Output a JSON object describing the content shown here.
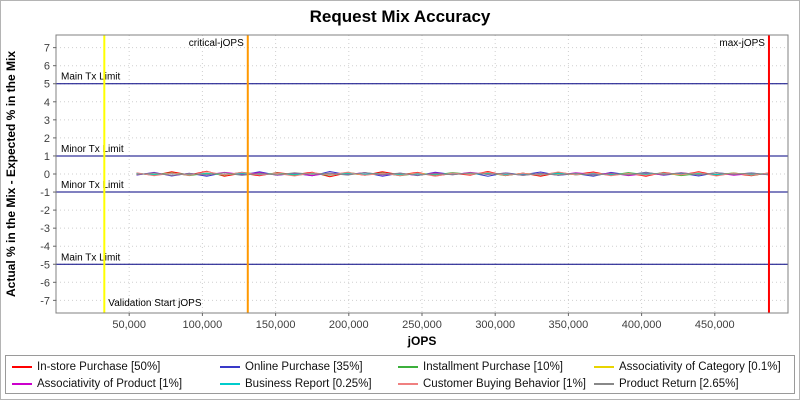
{
  "title": "Request Mix Accuracy",
  "chart_data": {
    "type": "line",
    "title": "Request Mix Accuracy",
    "xlabel": "jOPS",
    "ylabel": "Actual % in the Mix - Expected % in the Mix",
    "xlim": [
      0,
      500000
    ],
    "ylim": [
      -7.7,
      7.7
    ],
    "x_ticks": [
      50000,
      100000,
      150000,
      200000,
      250000,
      300000,
      350000,
      400000,
      450000
    ],
    "y_ticks": [
      -7,
      -6,
      -5,
      -4,
      -3,
      -2,
      -1,
      0,
      1,
      2,
      3,
      4,
      5,
      6,
      7
    ],
    "grid": true,
    "legend_position": "bottom",
    "x": [
      55000,
      67000,
      79000,
      91000,
      103000,
      115000,
      127000,
      139000,
      151000,
      163000,
      175000,
      187000,
      199000,
      211000,
      223000,
      235000,
      247000,
      259000,
      271000,
      283000,
      295000,
      307000,
      319000,
      331000,
      343000,
      355000,
      367000,
      379000,
      391000,
      403000,
      415000,
      427000,
      439000,
      451000,
      463000,
      475000,
      487000
    ],
    "series": [
      {
        "name": "In-store Purchase [50%]",
        "color": "#ff0000",
        "values": [
          0.05,
          -0.08,
          0.12,
          -0.05,
          0.15,
          -0.12,
          0.04,
          -0.1,
          0.08,
          -0.03,
          0.1,
          -0.15,
          0.06,
          -0.07,
          0.13,
          -0.04,
          0.09,
          -0.11,
          0.03,
          -0.06,
          0.14,
          -0.09,
          0.05,
          -0.13,
          0.07,
          -0.02,
          0.11,
          -0.08,
          0.04,
          -0.12,
          0.09,
          -0.05,
          0.13,
          -0.07,
          0.02,
          -0.1,
          0.06
        ]
      },
      {
        "name": "Online Purchase [35%]",
        "color": "#3939c8",
        "values": [
          -0.06,
          0.09,
          -0.11,
          0.04,
          -0.13,
          0.08,
          -0.05,
          0.12,
          -0.07,
          0.03,
          -0.1,
          0.14,
          -0.04,
          0.08,
          -0.12,
          0.05,
          -0.09,
          0.1,
          -0.03,
          0.07,
          -0.13,
          0.06,
          -0.04,
          0.11,
          -0.08,
          0.02,
          -0.12,
          0.09,
          -0.05,
          0.1,
          -0.07,
          0.04,
          -0.11,
          0.08,
          -0.03,
          0.06,
          -0.05
        ]
      },
      {
        "name": "Installment Purchase [10%]",
        "color": "#3cb03c",
        "values": [
          0.03,
          -0.05,
          0.07,
          -0.09,
          0.04,
          -0.06,
          0.1,
          -0.03,
          0.05,
          -0.08,
          0.02,
          -0.07,
          0.09,
          -0.04,
          0.06,
          -0.1,
          0.03,
          -0.05,
          0.08,
          -0.02,
          0.06,
          -0.09,
          0.04,
          -0.07,
          0.1,
          -0.05,
          0.03,
          -0.06,
          0.08,
          -0.04,
          0.07,
          -0.09,
          0.02,
          -0.05,
          0.06,
          -0.08,
          0.04
        ]
      },
      {
        "name": "Associativity of Category [0.1%]",
        "color": "#e8d400",
        "values": [
          0.02,
          -0.03,
          0.04,
          -0.02,
          0.03,
          -0.04,
          0.01,
          -0.02,
          0.03,
          -0.01,
          0.04,
          -0.03,
          0.02,
          -0.04,
          0.01,
          -0.03,
          0.04,
          -0.02,
          0.03,
          -0.01,
          0.02,
          -0.04,
          0.03,
          -0.02,
          0.01,
          -0.03,
          0.04,
          -0.01,
          0.02,
          -0.03,
          0.01,
          -0.04,
          0.03,
          -0.02,
          0.04,
          -0.01,
          0.02
        ]
      },
      {
        "name": "Associativity of Product [1%]",
        "color": "#cc00cc",
        "values": [
          -0.04,
          0.06,
          -0.08,
          0.03,
          -0.05,
          0.09,
          -0.02,
          0.07,
          -0.06,
          0.04,
          -0.09,
          0.05,
          -0.03,
          0.08,
          -0.05,
          0.02,
          -0.07,
          0.06,
          -0.04,
          0.09,
          -0.03,
          0.05,
          -0.08,
          0.04,
          -0.06,
          0.07,
          -0.02,
          0.05,
          -0.09,
          0.03,
          -0.05,
          0.08,
          -0.04,
          0.06,
          -0.07,
          0.02,
          -0.03
        ]
      },
      {
        "name": "Business Report [0.25%]",
        "color": "#00cccc",
        "values": [
          0.01,
          -0.02,
          0.03,
          -0.01,
          0.02,
          -0.03,
          0.02,
          -0.01,
          0.03,
          -0.02,
          0.01,
          -0.03,
          0.02,
          -0.01,
          0.03,
          -0.02,
          0.01,
          -0.02,
          0.03,
          -0.01,
          0.02,
          -0.03,
          0.01,
          -0.02,
          0.03,
          -0.01,
          0.02,
          -0.03,
          0.02,
          -0.01,
          0.03,
          -0.02,
          0.01,
          -0.03,
          0.02,
          -0.01,
          0.02
        ]
      },
      {
        "name": "Customer Buying Behavior [1%]",
        "color": "#f08080",
        "values": [
          0.07,
          -0.1,
          0.05,
          -0.08,
          0.12,
          -0.04,
          0.09,
          -0.06,
          0.03,
          -0.11,
          0.08,
          -0.05,
          0.1,
          -0.07,
          0.04,
          -0.09,
          0.06,
          -0.12,
          0.05,
          -0.03,
          0.1,
          -0.08,
          0.04,
          -0.06,
          0.11,
          -0.05,
          0.07,
          -0.1,
          0.03,
          -0.08,
          0.06,
          -0.04,
          0.09,
          -0.11,
          0.05,
          -0.07,
          0.06
        ]
      },
      {
        "name": "Product Return [2.65%]",
        "color": "#888888",
        "values": [
          -0.03,
          0.05,
          -0.07,
          0.02,
          -0.04,
          0.06,
          -0.08,
          0.03,
          -0.05,
          0.07,
          -0.02,
          0.04,
          -0.06,
          0.08,
          -0.03,
          0.05,
          -0.07,
          0.02,
          -0.04,
          0.06,
          -0.02,
          0.05,
          -0.08,
          0.03,
          -0.06,
          0.04,
          -0.07,
          0.02,
          -0.05,
          0.08,
          -0.03,
          0.06,
          -0.04,
          0.07,
          -0.02,
          0.05,
          -0.04
        ]
      }
    ],
    "markers": {
      "h_lines": [
        {
          "y": 5,
          "label": "Main Tx Limit",
          "color": "#000080"
        },
        {
          "y": 1,
          "label": "Minor Tx Limit",
          "color": "#000080"
        },
        {
          "y": -1,
          "label": "Minor Tx Limit",
          "color": "#000080"
        },
        {
          "y": -5,
          "label": "Main Tx Limit",
          "color": "#000080"
        }
      ],
      "v_lines": [
        {
          "x": 33000,
          "label": "Validation Start jOPS",
          "color": "#ffff00",
          "label_side": "right",
          "label_v": "bottom"
        },
        {
          "x": 131000,
          "label": "critical-jOPS",
          "color": "#ff9900",
          "label_side": "left",
          "label_v": "top"
        },
        {
          "x": 487000,
          "label": "max-jOPS",
          "color": "#ff0000",
          "label_side": "left",
          "label_v": "top"
        }
      ]
    }
  }
}
